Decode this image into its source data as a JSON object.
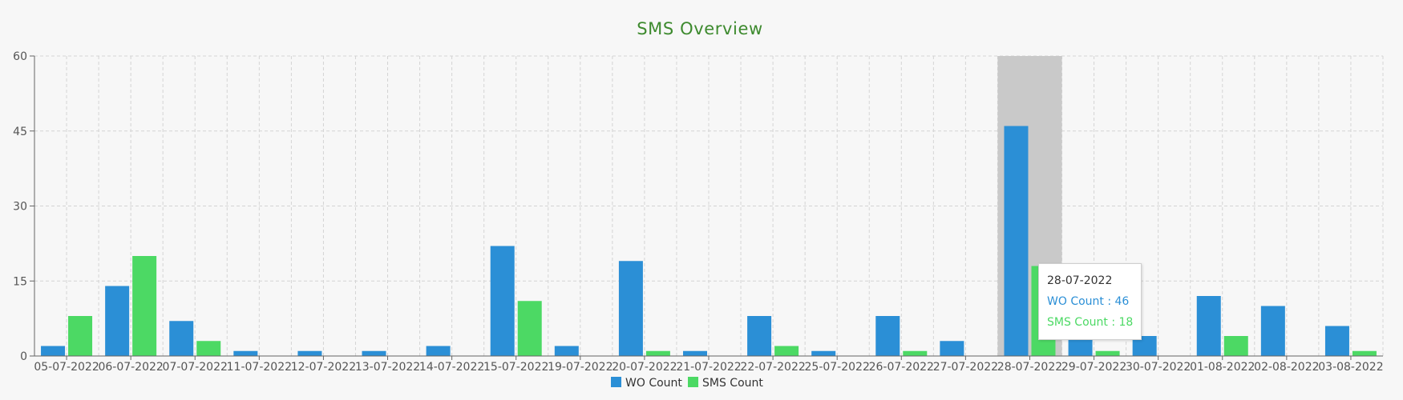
{
  "chart_data": {
    "type": "bar",
    "title": "SMS Overview",
    "xlabel": "",
    "ylabel": "",
    "ylim": [
      0,
      60
    ],
    "yticks": [
      0,
      15,
      30,
      45,
      60
    ],
    "grid": true,
    "legend_position": "bottom",
    "categories": [
      "05-07-2022",
      "06-07-2022",
      "07-07-2022",
      "11-07-2022",
      "12-07-2022",
      "13-07-2022",
      "14-07-2022",
      "15-07-2022",
      "19-07-2022",
      "20-07-2022",
      "21-07-2022",
      "22-07-2022",
      "25-07-2022",
      "26-07-2022",
      "27-07-2022",
      "28-07-2022",
      "29-07-2022",
      "30-07-2022",
      "01-08-2022",
      "02-08-2022",
      "03-08-2022"
    ],
    "series": [
      {
        "name": "WO Count",
        "color": "#2b8fd6",
        "values": [
          2,
          14,
          7,
          1,
          1,
          1,
          2,
          22,
          2,
          19,
          1,
          8,
          1,
          8,
          3,
          46,
          5,
          4,
          12,
          10,
          6
        ]
      },
      {
        "name": "SMS Count",
        "color": "#4cd964",
        "values": [
          8,
          20,
          3,
          0,
          0,
          0,
          0,
          11,
          0,
          1,
          0,
          2,
          0,
          1,
          0,
          18,
          1,
          0,
          4,
          0,
          1
        ]
      }
    ],
    "highlight_index": 15,
    "tooltip": {
      "date": "28-07-2022",
      "lines": [
        {
          "label": "WO Count : 46",
          "color": "#2b8fd6"
        },
        {
          "label": "SMS Count : 18",
          "color": "#4cd964"
        }
      ]
    }
  }
}
